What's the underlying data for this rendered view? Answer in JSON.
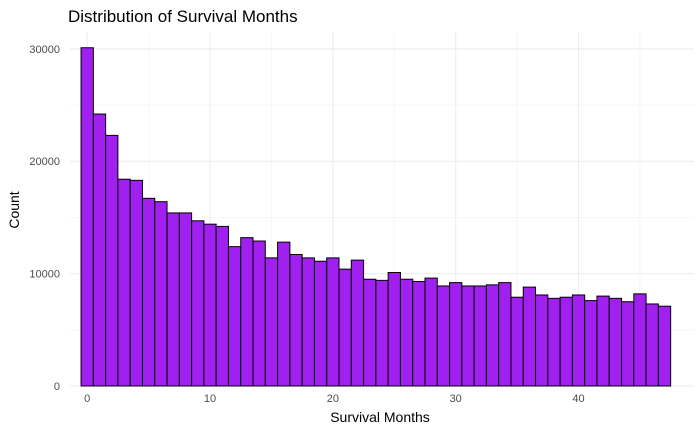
{
  "chart_data": {
    "type": "bar",
    "title": "Distribution of Survival Months",
    "xlabel": "Survival Months",
    "ylabel": "Count",
    "x_ticks": [
      0,
      10,
      20,
      30,
      40
    ],
    "y_ticks": [
      0,
      10000,
      20000,
      30000
    ],
    "xlim": [
      -1.4,
      49.4
    ],
    "ylim": [
      0,
      31500
    ],
    "bin_width": 1,
    "bar_fill": "#a020f0",
    "bar_outline": "#000000",
    "grid": true,
    "bins": [
      0,
      1,
      2,
      3,
      4,
      5,
      6,
      7,
      8,
      9,
      10,
      11,
      12,
      13,
      14,
      15,
      16,
      17,
      18,
      19,
      20,
      21,
      22,
      23,
      24,
      25,
      26,
      27,
      28,
      29,
      30,
      31,
      32,
      33,
      34,
      35,
      36,
      37,
      38,
      39,
      40,
      41,
      42,
      43,
      44,
      45,
      46,
      47
    ],
    "values": [
      30100,
      24200,
      22300,
      18400,
      18300,
      16700,
      16400,
      15400,
      15400,
      14700,
      14400,
      14200,
      12400,
      13200,
      12900,
      11400,
      12800,
      11700,
      11400,
      11100,
      11400,
      10400,
      11200,
      9500,
      9400,
      10100,
      9500,
      9300,
      9600,
      8900,
      9200,
      8900,
      8900,
      9000,
      9200,
      7900,
      8800,
      8100,
      7800,
      7900,
      8100,
      7600,
      8000,
      7800,
      7500,
      8200,
      7300,
      7100
    ]
  }
}
